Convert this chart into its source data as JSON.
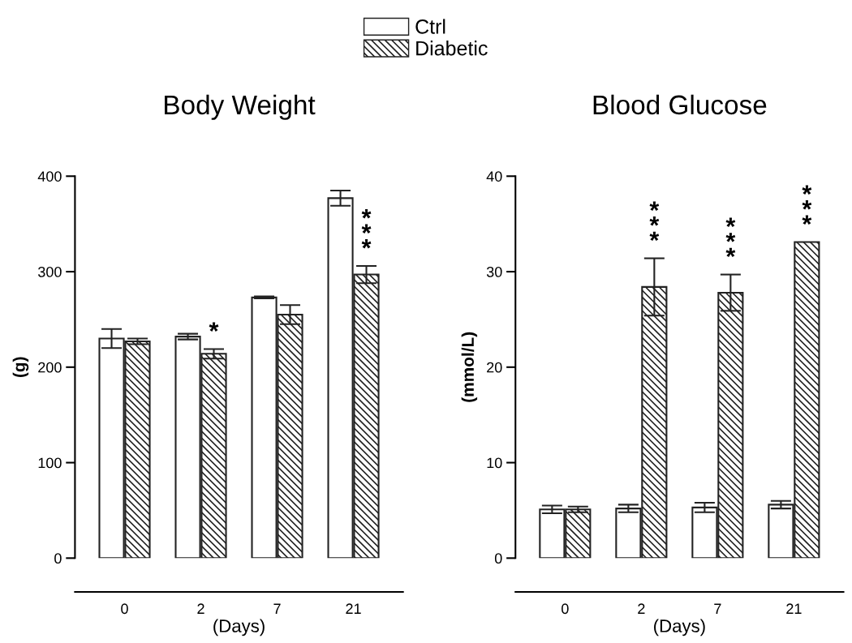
{
  "chart_data": [
    {
      "type": "bar",
      "title": "Body Weight",
      "xlabel": "(Days)",
      "ylabel": "(g)",
      "categories": [
        "0",
        "2",
        "7",
        "21"
      ],
      "ylim": [
        0,
        400
      ],
      "yticks": [
        0,
        100,
        200,
        300,
        400
      ],
      "legend": "top",
      "grid": false,
      "series": [
        {
          "name": "Ctrl",
          "color": "#ffffff",
          "values": [
            230,
            232,
            273,
            377
          ],
          "errors": [
            10,
            3,
            1,
            8
          ]
        },
        {
          "name": "Diabetic",
          "color": "#222222",
          "values": [
            227,
            214,
            255,
            297
          ],
          "errors": [
            3,
            5,
            10,
            9
          ]
        }
      ],
      "annotations": [
        {
          "text": "*",
          "x": "2",
          "y": 219
        },
        {
          "text": "***",
          "x": "21",
          "y": 306
        }
      ]
    },
    {
      "type": "bar",
      "title": "Blood Glucose",
      "xlabel": "(Days)",
      "ylabel": "(mmol/L)",
      "categories": [
        "0",
        "2",
        "7",
        "21"
      ],
      "ylim": [
        0,
        40
      ],
      "yticks": [
        0,
        10,
        20,
        30,
        40
      ],
      "grid": false,
      "series": [
        {
          "color": "#ffffff",
          "values": [
            5.1,
            5.2,
            5.3,
            5.6
          ],
          "errors": [
            0.4,
            0.4,
            0.5,
            0.4
          ]
        },
        {
          "color": "#222222",
          "values": [
            5.1,
            28.4,
            27.8,
            33.1
          ],
          "errors": [
            0.3,
            3.0,
            1.9,
            null
          ]
        }
      ],
      "annotations": [
        {
          "text": "***",
          "x": "2",
          "y": 31.4
        },
        {
          "text": "***",
          "x": "7",
          "y": 29.7
        },
        {
          "text": "***",
          "x": "21",
          "y": 33.1
        }
      ]
    }
  ]
}
